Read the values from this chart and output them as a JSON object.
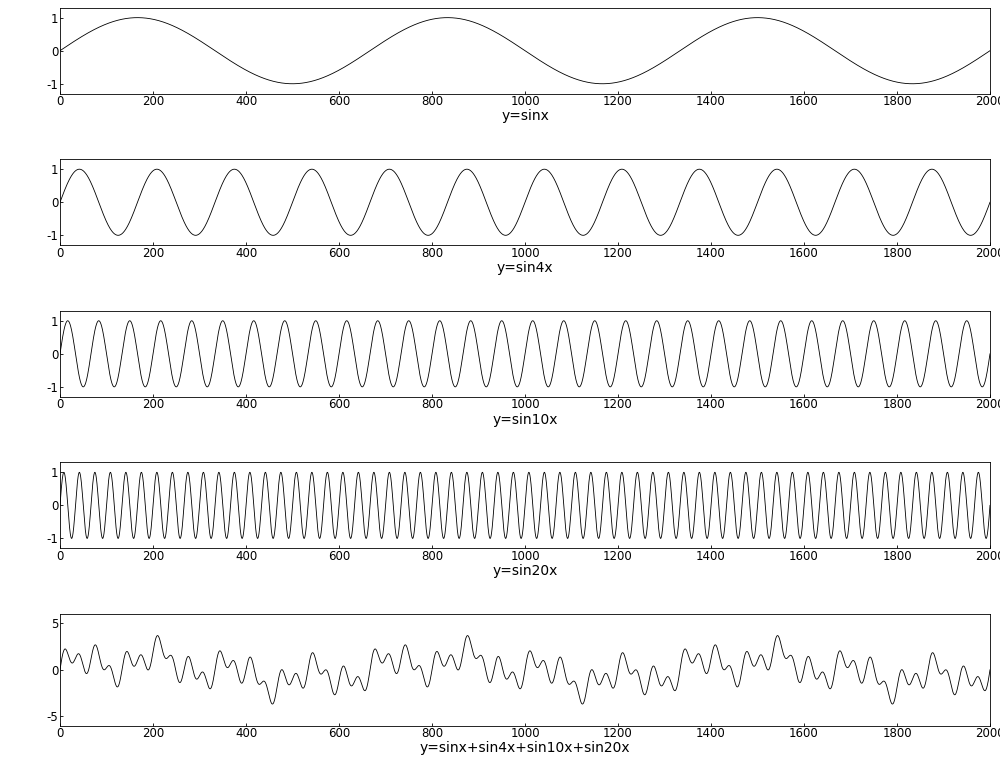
{
  "x_start": 0,
  "x_end": 2000,
  "num_points": 4001,
  "base_cycles": 3,
  "plots": [
    {
      "label": "y=sinx",
      "freq_factor": 1,
      "ylim": [
        -1.3,
        1.3
      ],
      "yticks": [
        -1,
        0,
        1
      ]
    },
    {
      "label": "y=sin4x",
      "freq_factor": 4,
      "ylim": [
        -1.3,
        1.3
      ],
      "yticks": [
        -1,
        0,
        1
      ]
    },
    {
      "label": "y=sin10x",
      "freq_factor": 10,
      "ylim": [
        -1.3,
        1.3
      ],
      "yticks": [
        -1,
        0,
        1
      ]
    },
    {
      "label": "y=sin20x",
      "freq_factor": 20,
      "ylim": [
        -1.3,
        1.3
      ],
      "yticks": [
        -1,
        0,
        1
      ]
    },
    {
      "label": "y=sinx+sin4x+sin10x+sin20x",
      "freq_factor": null,
      "ylim": [
        -6,
        6
      ],
      "yticks": [
        -5,
        0,
        5
      ]
    }
  ],
  "xticks": [
    0,
    200,
    400,
    600,
    800,
    1000,
    1200,
    1400,
    1600,
    1800,
    2000
  ],
  "line_color": "#000000",
  "line_width": 0.6,
  "background_color": "#ffffff",
  "tick_fontsize": 8.5,
  "label_fontsize": 10,
  "subplot_heights": [
    1.0,
    1.0,
    1.0,
    1.0,
    1.3
  ]
}
